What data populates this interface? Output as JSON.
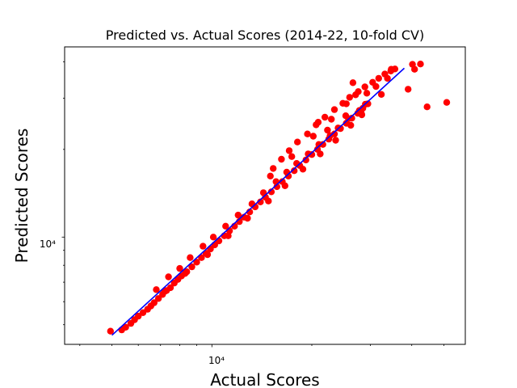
{
  "chart_data": {
    "type": "scatter",
    "title": "Predicted vs. Actual Scores (2014-22, 10-fold CV)",
    "xlabel": "Actual Scores",
    "ylabel": "Predicted Scores",
    "x_scale": "log",
    "y_scale": "log",
    "xlim": [
      3600,
      58000
    ],
    "ylim": [
      4280,
      45000
    ],
    "tick_labels": {
      "x": "10⁴",
      "y": "10⁴"
    },
    "grid": false,
    "legend": "none",
    "colors": {
      "points": "#ff0000",
      "fit_line": "#0000ff"
    },
    "fit_line": {
      "x": [
        5000,
        38000
      ],
      "y": [
        4600,
        38000
      ]
    },
    "series": [
      {
        "marker": "circle",
        "points": [
          [
            4950,
            4750
          ],
          [
            5350,
            4800
          ],
          [
            5500,
            4900
          ],
          [
            5700,
            5050
          ],
          [
            5850,
            5200
          ],
          [
            6000,
            5350
          ],
          [
            6200,
            5500
          ],
          [
            6400,
            5650
          ],
          [
            6550,
            5800
          ],
          [
            6700,
            5950
          ],
          [
            6900,
            6150
          ],
          [
            7100,
            6350
          ],
          [
            7300,
            6550
          ],
          [
            7500,
            6700
          ],
          [
            7700,
            6950
          ],
          [
            7900,
            7150
          ],
          [
            8100,
            7350
          ],
          [
            8400,
            7600
          ],
          [
            8700,
            7900
          ],
          [
            9000,
            8200
          ],
          [
            9300,
            8500
          ],
          [
            9600,
            8800
          ],
          [
            9900,
            9100
          ],
          [
            10200,
            9400
          ],
          [
            10500,
            9700
          ],
          [
            10900,
            10100
          ],
          [
            11300,
            10500
          ],
          [
            11700,
            10900
          ],
          [
            12100,
            11300
          ],
          [
            12500,
            11700
          ],
          [
            13000,
            12200
          ],
          [
            13500,
            12700
          ],
          [
            14000,
            13200
          ],
          [
            14500,
            13700
          ],
          [
            15100,
            14300
          ],
          [
            15700,
            14900
          ],
          [
            16300,
            15500
          ],
          [
            17000,
            16200
          ],
          [
            17700,
            16900
          ],
          [
            18400,
            17600
          ],
          [
            19200,
            18400
          ],
          [
            20000,
            19200
          ],
          [
            20800,
            20000
          ],
          [
            21600,
            20800
          ],
          [
            22500,
            21700
          ],
          [
            23400,
            22600
          ],
          [
            24400,
            23600
          ],
          [
            25400,
            24600
          ],
          [
            26400,
            25600
          ],
          [
            27500,
            26600
          ],
          [
            28500,
            27700
          ],
          [
            29500,
            28700
          ],
          [
            6800,
            6600
          ],
          [
            7400,
            7300
          ],
          [
            8000,
            7800
          ],
          [
            8600,
            8500
          ],
          [
            9400,
            9300
          ],
          [
            10100,
            10000
          ],
          [
            11000,
            10900
          ],
          [
            12000,
            11900
          ],
          [
            13200,
            13000
          ],
          [
            14300,
            14200
          ],
          [
            15600,
            15500
          ],
          [
            16800,
            16700
          ],
          [
            18000,
            17900
          ],
          [
            19500,
            19300
          ],
          [
            21000,
            20800
          ],
          [
            22700,
            22300
          ],
          [
            24000,
            23700
          ],
          [
            25800,
            25500
          ],
          [
            27800,
            27200
          ],
          [
            29000,
            28600
          ],
          [
            7200,
            6500
          ],
          [
            8300,
            7500
          ],
          [
            9700,
            8700
          ],
          [
            11200,
            10100
          ],
          [
            12800,
            11600
          ],
          [
            14800,
            13300
          ],
          [
            16600,
            15000
          ],
          [
            18800,
            17100
          ],
          [
            21200,
            19300
          ],
          [
            23600,
            21500
          ],
          [
            26200,
            24200
          ],
          [
            28300,
            26300
          ],
          [
            15300,
            17200
          ],
          [
            16200,
            18500
          ],
          [
            17100,
            19800
          ],
          [
            18100,
            21200
          ],
          [
            19400,
            22600
          ],
          [
            20600,
            24300
          ],
          [
            21900,
            25800
          ],
          [
            23400,
            27400
          ],
          [
            24800,
            28800
          ],
          [
            26000,
            30200
          ],
          [
            27600,
            31600
          ],
          [
            28900,
            32800
          ],
          [
            30500,
            34000
          ],
          [
            31800,
            35100
          ],
          [
            33200,
            36300
          ],
          [
            34600,
            37200
          ],
          [
            15000,
            16200
          ],
          [
            17400,
            18900
          ],
          [
            20200,
            22200
          ],
          [
            22900,
            25400
          ],
          [
            25400,
            28700
          ],
          [
            27100,
            30800
          ],
          [
            20900,
            24800
          ],
          [
            22300,
            23300
          ],
          [
            25300,
            26100
          ],
          [
            26600,
            33900
          ],
          [
            28200,
            26600
          ],
          [
            29300,
            31200
          ],
          [
            31200,
            32900
          ],
          [
            32400,
            30900
          ],
          [
            33800,
            35100
          ],
          [
            34700,
            37700
          ],
          [
            35600,
            37800
          ],
          [
            39000,
            32200
          ],
          [
            40200,
            39200
          ],
          [
            40800,
            37700
          ],
          [
            42500,
            39300
          ],
          [
            44500,
            28000
          ],
          [
            51000,
            29000
          ]
        ]
      }
    ]
  }
}
